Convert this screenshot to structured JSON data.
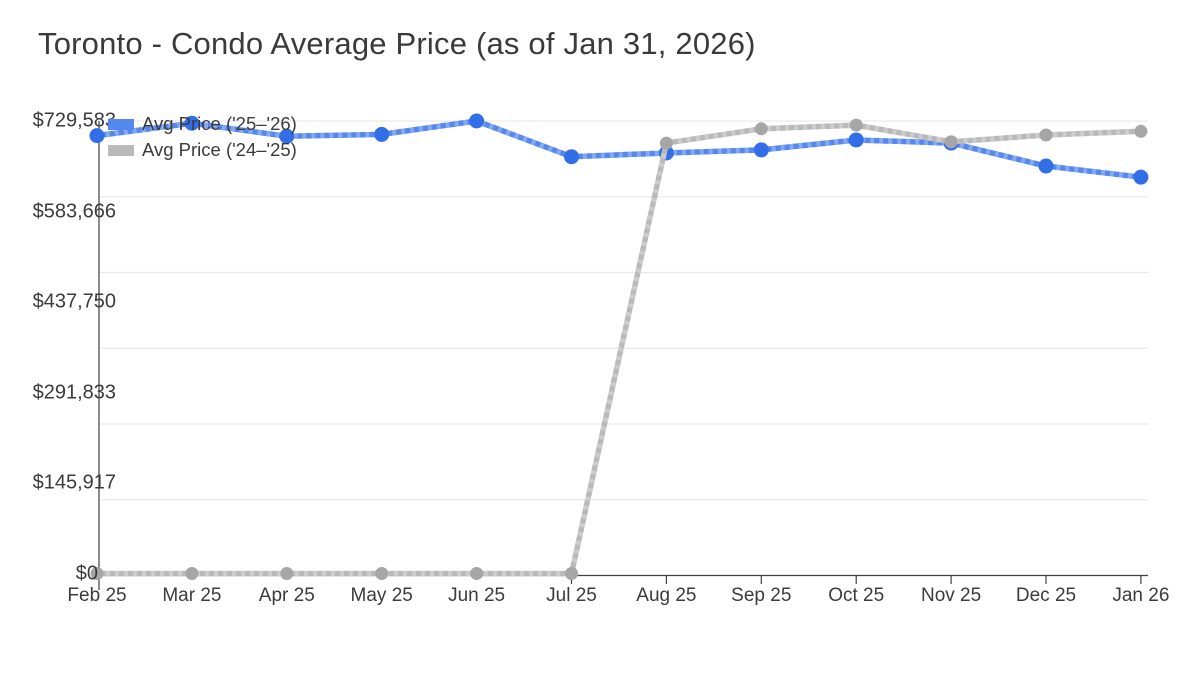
{
  "title": "Toronto - Condo Average Price (as of Jan 31, 2026)",
  "chart_data": {
    "type": "line",
    "title": "Toronto - Condo Average Price (as of Jan 31, 2026)",
    "categories": [
      "Feb 25",
      "Mar 25",
      "Apr 25",
      "May 25",
      "Jun 25",
      "Jul 25",
      "Aug 25",
      "Sep 25",
      "Oct 25",
      "Nov 25",
      "Dec 25",
      "Jan 26"
    ],
    "series": [
      {
        "name": "Avg Price ('25–'26)",
        "color": "#5488ee",
        "marker_color": "#326ee8",
        "values": [
          706000,
          726000,
          705000,
          708000,
          729583,
          672000,
          678000,
          683000,
          699000,
          694000,
          657000,
          639000
        ]
      },
      {
        "name": "Avg Price ('24–'25)",
        "color": "#b9b9b9",
        "marker_color": "#a6a6a6",
        "values": [
          0,
          0,
          0,
          0,
          0,
          0,
          694000,
          717000,
          723000,
          696000,
          707000,
          713000
        ]
      }
    ],
    "y_ticks": [
      {
        "label": "$0",
        "value": 0
      },
      {
        "label": "$145,917",
        "value": 145917
      },
      {
        "label": "$291,833",
        "value": 291833
      },
      {
        "label": "$437,750",
        "value": 437750
      },
      {
        "label": "$583,666",
        "value": 583666
      },
      {
        "label": "$729,583",
        "value": 729583
      }
    ],
    "ylim": [
      0,
      729583
    ],
    "grid": "horizontal only, 6 equal intervals",
    "legend_position": "top-left inside plot"
  },
  "colors": {
    "background": "#ffffff",
    "grid_line": "#e9e9e9",
    "axis_line": "#404040",
    "text": "#3b3b3b",
    "series_blue": "#5488ee",
    "series_blue_marker": "#326ee8",
    "series_gray": "#b9b9b9",
    "series_gray_marker": "#a6a6a6",
    "dash_overlay": "rgba(255,255,255,0.28)"
  }
}
